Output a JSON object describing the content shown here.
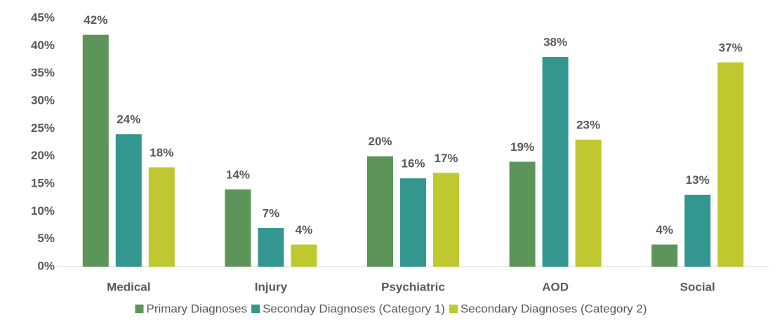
{
  "chart_data": {
    "type": "bar",
    "categories": [
      "Medical",
      "Injury",
      "Psychiatric",
      "AOD",
      "Social"
    ],
    "series": [
      {
        "name": "Primary Diagnoses",
        "color": "#5c9459",
        "values": [
          42,
          14,
          20,
          19,
          4
        ],
        "value_labels": [
          "42%",
          "14%",
          "20%",
          "19%",
          "4%"
        ]
      },
      {
        "name": "Seconday Diagnoses (Category 1)",
        "color": "#34978f",
        "values": [
          24,
          7,
          16,
          38,
          13
        ],
        "value_labels": [
          "24%",
          "7%",
          "16%",
          "38%",
          "13%"
        ]
      },
      {
        "name": "Secondary Diagnoses (Category 2)",
        "color": "#bfc92f",
        "values": [
          18,
          4,
          17,
          23,
          37
        ],
        "value_labels": [
          "18%",
          "4%",
          "17%",
          "23%",
          "37%"
        ]
      }
    ],
    "ylim": [
      0,
      45
    ],
    "yticks": [
      {
        "value": 0,
        "label": "0%"
      },
      {
        "value": 5,
        "label": "5%"
      },
      {
        "value": 10,
        "label": "10%"
      },
      {
        "value": 15,
        "label": "15%"
      },
      {
        "value": 20,
        "label": "20%"
      },
      {
        "value": 25,
        "label": "25%"
      },
      {
        "value": 30,
        "label": "30%"
      },
      {
        "value": 35,
        "label": "35%"
      },
      {
        "value": 40,
        "label": "40%"
      },
      {
        "value": 45,
        "label": "45%"
      }
    ],
    "grid": false,
    "legend": "bottom"
  }
}
